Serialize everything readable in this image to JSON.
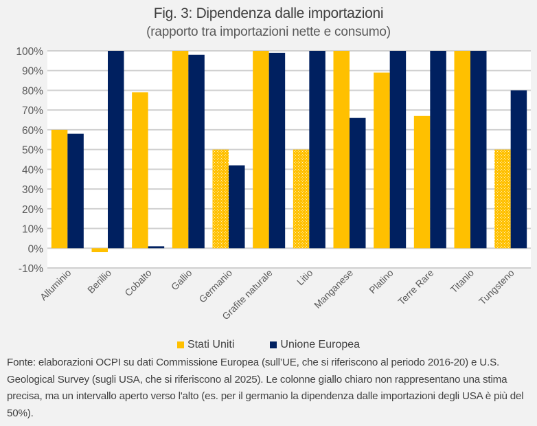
{
  "chart_data": {
    "type": "bar",
    "title": "Fig. 3: Dipendenza dalle importazioni",
    "subtitle": "(rapporto tra importazioni nette e consumo)",
    "xlabel": "",
    "ylabel": "",
    "ylim": [
      -0.1,
      1.0
    ],
    "yticks": [
      -0.1,
      0,
      0.1,
      0.2,
      0.3,
      0.4,
      0.5,
      0.6,
      0.7,
      0.8,
      0.9,
      1.0
    ],
    "ytick_labels": [
      "-10%",
      "0%",
      "10%",
      "20%",
      "30%",
      "40%",
      "50%",
      "60%",
      "70%",
      "80%",
      "90%",
      "100%"
    ],
    "grid": true,
    "categories": [
      "Alluminio",
      "Berillio",
      "Cobalto",
      "Gallio",
      "Germanio",
      "Grafite naturale",
      "Litio",
      "Manganese",
      "Platino",
      "Terre Rare",
      "Titanio",
      "Tungsteno"
    ],
    "series": [
      {
        "name": "Stati Uniti",
        "color": "#ffc000",
        "values": [
          0.6,
          -0.02,
          0.79,
          1.0,
          0.5,
          1.0,
          0.5,
          1.0,
          0.89,
          0.67,
          1.0,
          0.5
        ],
        "lower_bound_only": [
          false,
          false,
          false,
          false,
          true,
          false,
          true,
          false,
          false,
          false,
          false,
          true
        ]
      },
      {
        "name": "Unione Europea",
        "color": "#002060",
        "values": [
          0.58,
          1.0,
          0.01,
          0.98,
          0.42,
          0.99,
          1.0,
          0.66,
          1.0,
          1.0,
          1.0,
          0.8
        ]
      }
    ],
    "legend_position": "bottom"
  },
  "footnote": "Fonte: elaborazioni OCPI su dati Commissione Europea (sull’UE, che si riferiscono al periodo 2016-20) e U.S. Geological Survey (sugli USA, che si riferiscono al 2025). Le colonne giallo chiaro non rappresentano una stima precisa, ma un intervallo aperto verso l'alto (es. per il germanio la dipendenza dalle importazioni degli USA è più del 50%)."
}
